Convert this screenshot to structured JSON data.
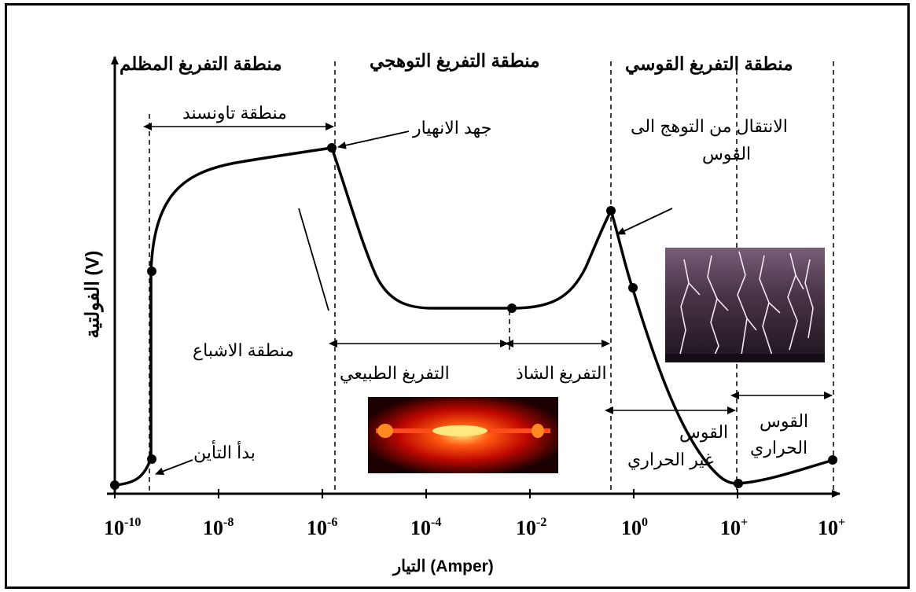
{
  "regions": {
    "dark": "منطقة التفريغ المظلم",
    "glow": "منطقة التفريغ التوهجي",
    "arc": "منطقة التفريغ القوسي"
  },
  "annotations": {
    "townsend": "منطقة تاونسند",
    "breakdown": "جهد الانهيار",
    "transition_line1": "الانتقال من التوهج الى",
    "transition_line2": "القوس",
    "saturation": "منطقة الاشباع",
    "normal_glow": "التفريغ الطبيعي",
    "abnormal_glow": "التفريغ الشاذ",
    "ionization_start": "بدأ التأين",
    "nonthermal_arc_line1": "القوس",
    "nonthermal_arc_line2": "غير الحراري",
    "thermal_arc_line1": "القوس",
    "thermal_arc_line2": "الحراري"
  },
  "axes": {
    "ylabel": "الفولتية (V)",
    "xlabel": "التيار (Amper)",
    "ticks": [
      {
        "base": "10",
        "exp": "-10"
      },
      {
        "base": "10",
        "exp": "-8"
      },
      {
        "base": "10",
        "exp": "-6"
      },
      {
        "base": "10",
        "exp": "-4"
      },
      {
        "base": "10",
        "exp": "-2"
      },
      {
        "base": "10",
        "exp": "0"
      },
      {
        "base": "10",
        "exp": "+"
      },
      {
        "base": "10",
        "exp": "+"
      }
    ]
  },
  "colors": {
    "line": "#000000",
    "lightning_bg": "#3a2a3c",
    "glow_core": "#ffd84a",
    "glow_outer": "#ff2200"
  }
}
